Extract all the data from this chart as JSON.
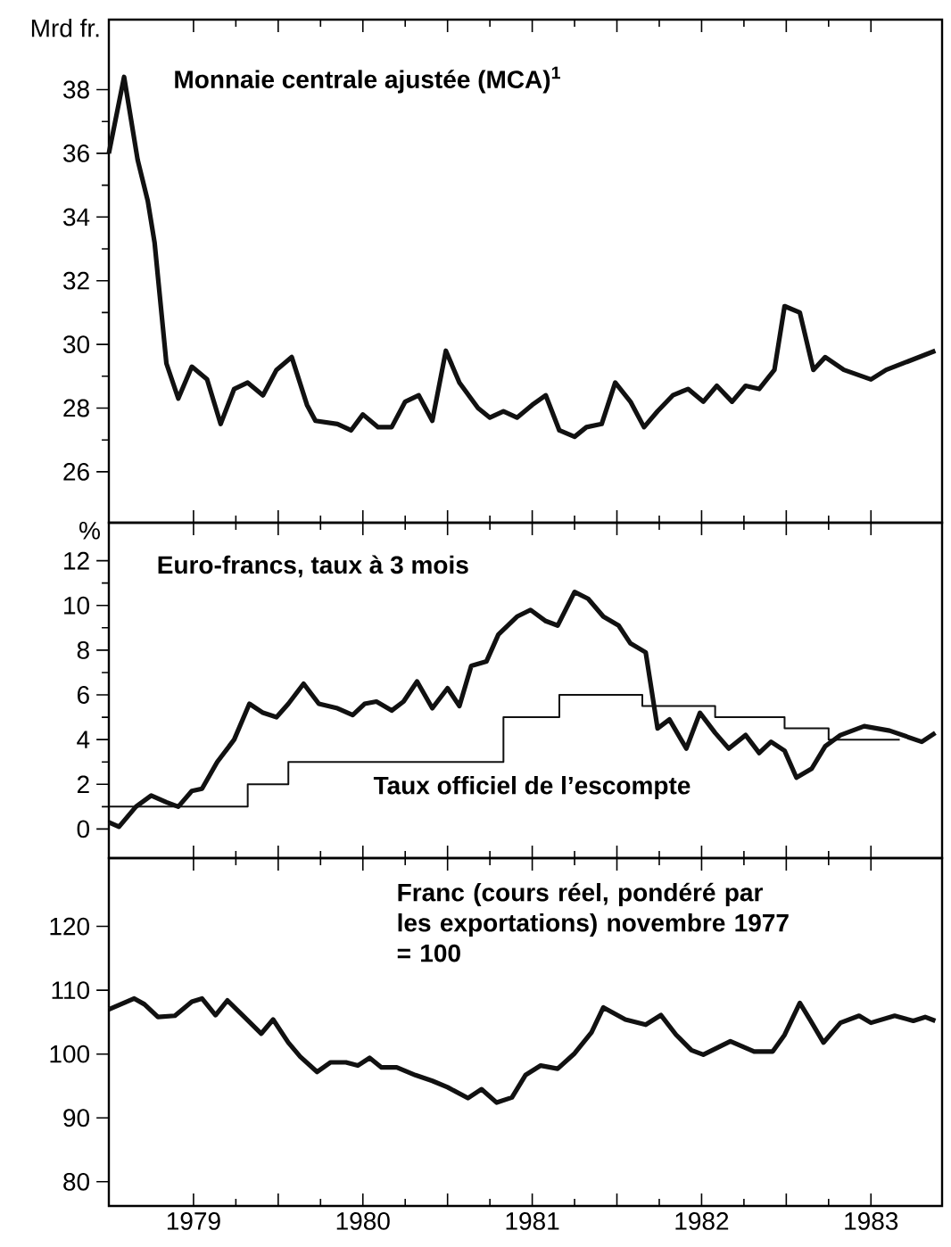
{
  "chart_data": [
    {
      "type": "line",
      "title": "Monnaie centrale ajustée (MCA)$^{1}$",
      "ylabel": "Mrd fr.",
      "tick_labels": "y",
      "xlim": [
        1979,
        1983.92
      ],
      "ylim": [
        24.4,
        40.2
      ],
      "xticks": [
        {
          "value": 1979.5,
          "label": null
        },
        {
          "value": 1980,
          "label": null
        },
        {
          "value": 1980.5,
          "label": null
        },
        {
          "value": 1981,
          "label": null
        },
        {
          "value": 1981.5,
          "label": null
        },
        {
          "value": 1982,
          "label": null
        },
        {
          "value": 1982.5,
          "label": null
        },
        {
          "value": 1983,
          "label": null
        },
        {
          "value": 1983.5,
          "label": null
        }
      ],
      "yticks": [
        26,
        28,
        30,
        32,
        34,
        36,
        38
      ],
      "series": [
        {
          "color": "#111111",
          "x": [
            1979.0,
            1979.09,
            1979.17,
            1979.23,
            1979.27,
            1979.34,
            1979.41,
            1979.49,
            1979.58,
            1979.66,
            1979.74,
            1979.82,
            1979.91,
            1979.99,
            1980.08,
            1980.17,
            1980.22,
            1980.35,
            1980.43,
            1980.5,
            1980.59,
            1980.67,
            1980.75,
            1980.83,
            1980.91,
            1980.99,
            1981.07,
            1981.18,
            1981.25,
            1981.33,
            1981.41,
            1981.5,
            1981.58,
            1981.66,
            1981.75,
            1981.82,
            1981.91,
            1981.99,
            1982.08,
            1982.16,
            1982.24,
            1982.33,
            1982.42,
            1982.51,
            1982.59,
            1982.68,
            1982.76,
            1982.84,
            1982.93,
            1982.99,
            1983.08,
            1983.16,
            1983.23,
            1983.34,
            1983.5,
            1983.59,
            1983.88
          ],
          "values": [
            36.0,
            38.4,
            35.8,
            34.5,
            33.2,
            29.4,
            28.3,
            29.3,
            28.9,
            27.5,
            28.6,
            28.8,
            28.4,
            29.2,
            29.6,
            28.1,
            27.6,
            27.5,
            27.3,
            27.8,
            27.4,
            27.4,
            28.2,
            28.4,
            27.6,
            29.8,
            28.8,
            28.0,
            27.7,
            27.9,
            27.7,
            28.1,
            28.4,
            27.3,
            27.1,
            27.4,
            27.5,
            28.8,
            28.2,
            27.4,
            27.9,
            28.4,
            28.6,
            28.2,
            28.7,
            28.2,
            28.7,
            28.6,
            29.2,
            31.2,
            31.0,
            29.2,
            29.6,
            29.2,
            28.9,
            29.2,
            29.8
          ]
        }
      ]
    },
    {
      "type": "line",
      "ylabel": "%",
      "tick_labels": "y",
      "xlim": [
        1979,
        1983.92
      ],
      "ylim": [
        -1.3,
        13.7
      ],
      "xticks": [
        {
          "value": 1979.5,
          "label": null
        },
        {
          "value": 1980,
          "label": null
        },
        {
          "value": 1980.5,
          "label": null
        },
        {
          "value": 1981,
          "label": null
        },
        {
          "value": 1981.5,
          "label": null
        },
        {
          "value": 1982,
          "label": null
        },
        {
          "value": 1982.5,
          "label": null
        },
        {
          "value": 1983,
          "label": null
        },
        {
          "value": 1983.5,
          "label": null
        }
      ],
      "yticks": [
        0,
        2,
        4,
        6,
        8,
        10,
        12
      ],
      "series": [
        {
          "name": "Euro-francs, taux à 3 mois",
          "color": "#111111",
          "x": [
            1979.0,
            1979.06,
            1979.16,
            1979.25,
            1979.34,
            1979.41,
            1979.49,
            1979.55,
            1979.64,
            1979.74,
            1979.83,
            1979.91,
            1979.99,
            1980.06,
            1980.15,
            1980.24,
            1980.35,
            1980.44,
            1980.51,
            1980.58,
            1980.67,
            1980.74,
            1980.82,
            1980.91,
            1981.0,
            1981.07,
            1981.14,
            1981.23,
            1981.3,
            1981.41,
            1981.49,
            1981.58,
            1981.65,
            1981.75,
            1981.83,
            1981.92,
            1982.01,
            1982.08,
            1982.17,
            1982.24,
            1982.31,
            1982.41,
            1982.49,
            1982.58,
            1982.66,
            1982.76,
            1982.84,
            1982.91,
            1982.99,
            1983.06,
            1983.15,
            1983.23,
            1983.32,
            1983.46,
            1983.61,
            1983.8,
            1983.88
          ],
          "values": [
            0.3,
            0.1,
            1.0,
            1.5,
            1.2,
            1.0,
            1.7,
            1.8,
            3.0,
            4.0,
            5.6,
            5.2,
            5.0,
            5.6,
            6.5,
            5.6,
            5.4,
            5.1,
            5.6,
            5.7,
            5.3,
            5.7,
            6.6,
            5.4,
            6.3,
            5.5,
            7.3,
            7.5,
            8.7,
            9.5,
            9.8,
            9.3,
            9.1,
            10.6,
            10.3,
            9.5,
            9.1,
            8.3,
            7.9,
            4.5,
            4.9,
            3.6,
            5.2,
            4.3,
            3.6,
            4.2,
            3.4,
            3.9,
            3.5,
            2.3,
            2.7,
            3.7,
            4.2,
            4.6,
            4.4,
            3.9,
            4.3
          ]
        },
        {
          "name": "Taux officiel de l’escompte",
          "type": "step",
          "color": "#111111",
          "x": [
            1979.0,
            1979.82,
            1980.06,
            1981.33,
            1981.66,
            1982.15,
            1982.58,
            1982.99,
            1983.25,
            1983.67
          ],
          "values": [
            1,
            2,
            3,
            5,
            6,
            5.5,
            5,
            4.5,
            4,
            4
          ]
        }
      ]
    },
    {
      "type": "line",
      "title": "Franc (cours réel, pondéré par les exportations) novembre 1977 = 100",
      "xlim": [
        1979,
        1983.92
      ],
      "ylim": [
        76.2,
        130.7
      ],
      "xticks": [
        {
          "value": 1979.5,
          "label": "1979"
        },
        {
          "value": 1980,
          "label": null
        },
        {
          "value": 1980.5,
          "label": "1980"
        },
        {
          "value": 1981,
          "label": null
        },
        {
          "value": 1981.5,
          "label": "1981"
        },
        {
          "value": 1982,
          "label": null
        },
        {
          "value": 1982.5,
          "label": "1982"
        },
        {
          "value": 1983,
          "label": null
        },
        {
          "value": 1983.5,
          "label": "1983"
        }
      ],
      "yticks": [
        80,
        90,
        100,
        110,
        120
      ],
      "series": [
        {
          "color": "#111111",
          "x": [
            1979.0,
            1979.15,
            1979.21,
            1979.29,
            1979.39,
            1979.49,
            1979.55,
            1979.63,
            1979.7,
            1979.8,
            1979.9,
            1979.97,
            1980.06,
            1980.13,
            1980.23,
            1980.31,
            1980.4,
            1980.47,
            1980.54,
            1980.61,
            1980.7,
            1980.81,
            1980.91,
            1981.0,
            1981.12,
            1981.2,
            1981.29,
            1981.38,
            1981.46,
            1981.55,
            1981.65,
            1981.75,
            1981.85,
            1981.92,
            1982.05,
            1982.17,
            1982.26,
            1982.35,
            1982.44,
            1982.51,
            1982.67,
            1982.81,
            1982.92,
            1982.99,
            1983.08,
            1983.14,
            1983.22,
            1983.32,
            1983.43,
            1983.5,
            1983.64,
            1983.75,
            1983.82,
            1983.88
          ],
          "values": [
            107.0,
            108.7,
            107.8,
            105.8,
            106.0,
            108.2,
            108.7,
            106.1,
            108.4,
            105.8,
            103.2,
            105.4,
            101.8,
            99.6,
            97.2,
            98.7,
            98.7,
            98.2,
            99.4,
            97.9,
            97.9,
            96.7,
            95.8,
            94.8,
            93.1,
            94.5,
            92.4,
            93.2,
            96.7,
            98.2,
            97.7,
            100.1,
            103.4,
            107.3,
            105.4,
            104.6,
            106.1,
            103.0,
            100.6,
            99.9,
            102.0,
            100.4,
            100.4,
            103.0,
            108.0,
            105.4,
            101.8,
            104.9,
            106.0,
            104.9,
            106.0,
            105.2,
            105.8,
            105.2
          ]
        }
      ]
    }
  ]
}
